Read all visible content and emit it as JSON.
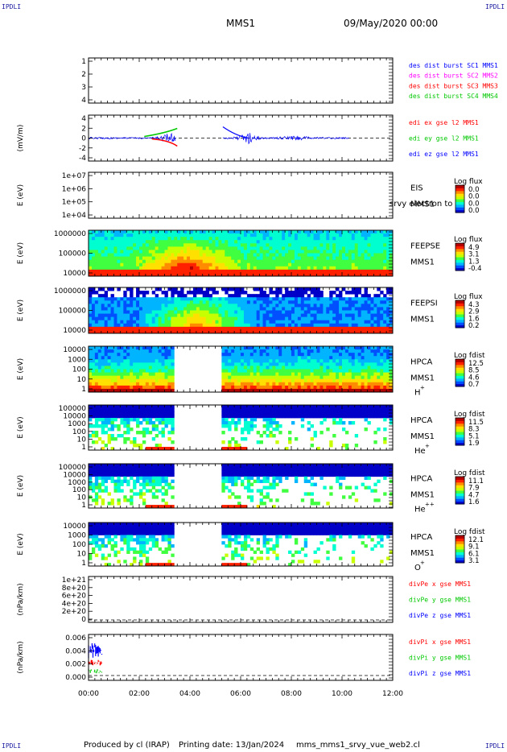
{
  "corner_label": "IPDLI",
  "header": {
    "title": "MMS1",
    "date": "09/May/2020 00:00"
  },
  "footer": {
    "produced_by": "Produced by cl (IRAP)",
    "printing_date": "Printing date: 13/Jan/2024",
    "script": "mms_mms1_srvy_vue_web2.cl"
  },
  "colors": {
    "blue": "#0000ff",
    "magenta": "#ff00ff",
    "red": "#ff0000",
    "green": "#00c800",
    "dark_blue": "#1a1aa0"
  },
  "chart_data": [
    {
      "type": "line",
      "id": "p1",
      "yticks": [
        "1",
        "2",
        "3",
        "4"
      ],
      "ylim": [
        0.8,
        4.5
      ],
      "legend": [
        {
          "text": "des dist burst SC1 MMS1",
          "color": "#0000ff"
        },
        {
          "text": "des dist burst SC2 MMS2",
          "color": "#ff00ff"
        },
        {
          "text": "des dist burst SC3 MMS3",
          "color": "#ff0000"
        },
        {
          "text": "des dist burst SC4 MMS4",
          "color": "#00c800"
        }
      ]
    },
    {
      "type": "line",
      "id": "p2",
      "ylabel": "(mV/m)",
      "yticks": [
        "4",
        "2",
        "0",
        "-2",
        "-4"
      ],
      "ylim": [
        -5,
        5
      ],
      "legend": [
        {
          "text": "edi ex gse l2 MMS1",
          "color": "#ff0000"
        },
        {
          "text": "edi ey gse l2 MMS1",
          "color": "#00c800"
        },
        {
          "text": "edi ez gse l2 MMS1",
          "color": "#0000ff"
        }
      ],
      "data_ranges_hours": [
        [
          0,
          3.45
        ],
        [
          5.3,
          10.3
        ]
      ]
    },
    {
      "type": "heatmap",
      "id": "p3",
      "ylabel": "E (eV)",
      "yticks": [
        "1e+07",
        "1e+06",
        "1e+05",
        "1e+04"
      ],
      "labels": [
        "EIS",
        "MMS1"
      ],
      "overlay_text": "srvy electron to",
      "colorbar": {
        "title": "Log flux",
        "ticks": [
          "0.0",
          "0.0",
          "0.0",
          "0.0"
        ]
      }
    },
    {
      "type": "heatmap",
      "id": "p4",
      "ylabel": "E (eV)",
      "yticks": [
        "1000000",
        "100000",
        "10000"
      ],
      "labels": [
        "FEEPSE",
        "MMS1"
      ],
      "colorbar": {
        "title": "Log flux",
        "ticks": [
          "4.9",
          "3.1",
          "1.3",
          "-0.4"
        ]
      }
    },
    {
      "type": "heatmap",
      "id": "p5",
      "ylabel": "E (eV)",
      "yticks": [
        "1000000",
        "100000",
        "10000"
      ],
      "labels": [
        "FEEPSI",
        "MMS1"
      ],
      "colorbar": {
        "title": "Log flux",
        "ticks": [
          "4.3",
          "2.9",
          "1.6",
          "0.2"
        ]
      }
    },
    {
      "type": "heatmap",
      "id": "p6",
      "ylabel": "E (eV)",
      "yticks": [
        "10000",
        "1000",
        "100",
        "10",
        "1"
      ],
      "labels": [
        "HPCA",
        "MMS1"
      ],
      "species": "H",
      "charge": "+",
      "colorbar": {
        "title": "Log fdist",
        "ticks": [
          "12.5",
          "8.5",
          "4.6",
          "0.7"
        ]
      },
      "data_ranges_hours": [
        [
          0,
          3.4
        ],
        [
          5.3,
          12
        ]
      ]
    },
    {
      "type": "heatmap",
      "id": "p7",
      "ylabel": "E (eV)",
      "yticks": [
        "100000",
        "10000",
        "1000",
        "100",
        "10",
        "1"
      ],
      "labels": [
        "HPCA",
        "MMS1"
      ],
      "species": "He",
      "charge": "+",
      "colorbar": {
        "title": "Log fdist",
        "ticks": [
          "11.5",
          "8.3",
          "5.1",
          "1.9"
        ]
      },
      "data_ranges_hours": [
        [
          0,
          3.4
        ],
        [
          5.3,
          12
        ]
      ]
    },
    {
      "type": "heatmap",
      "id": "p8",
      "ylabel": "E (eV)",
      "yticks": [
        "100000",
        "10000",
        "1000",
        "100",
        "10",
        "1"
      ],
      "labels": [
        "HPCA",
        "MMS1"
      ],
      "species": "He",
      "charge": "++",
      "colorbar": {
        "title": "Log fdist",
        "ticks": [
          "11.1",
          "7.9",
          "4.7",
          "1.6"
        ]
      },
      "data_ranges_hours": [
        [
          0,
          3.4
        ],
        [
          5.3,
          12
        ]
      ]
    },
    {
      "type": "heatmap",
      "id": "p9",
      "ylabel": "E (eV)",
      "yticks": [
        "10000",
        "1000",
        "100",
        "10",
        "1"
      ],
      "labels": [
        "HPCA",
        "MMS1"
      ],
      "species": "O",
      "charge": "+",
      "colorbar": {
        "title": "Log fdist",
        "ticks": [
          "12.1",
          "9.1",
          "6.1",
          "3.1"
        ]
      },
      "data_ranges_hours": [
        [
          0,
          3.4
        ],
        [
          5.3,
          12
        ]
      ]
    },
    {
      "type": "line",
      "id": "p10",
      "ylabel": "(nPa/km)",
      "yticks": [
        "1e+21",
        "8e+20",
        "6e+20",
        "4e+20",
        "2e+20",
        "0"
      ],
      "ylim": [
        0,
        1e+21
      ],
      "legend": [
        {
          "text": "divPe x gse MMS1",
          "color": "#ff0000"
        },
        {
          "text": "divPe y gse MMS1",
          "color": "#00c800"
        },
        {
          "text": "divPe z gse MMS1",
          "color": "#0000ff"
        }
      ]
    },
    {
      "type": "line",
      "id": "p11",
      "ylabel": "(nPa/km)",
      "yticks": [
        "0.006",
        "0.004",
        "0.002",
        "0.000"
      ],
      "ylim": [
        0,
        0.0068
      ],
      "legend": [
        {
          "text": "divPi x gse MMS1",
          "color": "#ff0000"
        },
        {
          "text": "divPi y gse MMS1",
          "color": "#00c800"
        },
        {
          "text": "divPi z gse MMS1",
          "color": "#0000ff"
        }
      ],
      "data_ranges_hours": [
        [
          0,
          0.55
        ]
      ]
    }
  ],
  "x_axis": {
    "ticks": [
      "00:00",
      "02:00",
      "04:00",
      "06:00",
      "08:00",
      "10:00",
      "12:00"
    ],
    "range_hours": [
      0,
      12
    ]
  }
}
